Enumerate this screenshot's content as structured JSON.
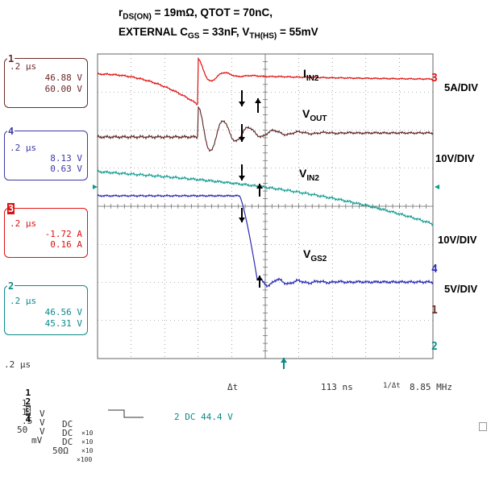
{
  "title": {
    "line1_pre": "r",
    "line1_sub": "DS(ON)",
    "line1_post": " = 19mΩ, QTOT = 70nC,",
    "line2_pre": "EXTERNAL C",
    "line2_sub1": "GS",
    "line2_mid": " = 33nF, V",
    "line2_sub2": "TH(HS)",
    "line2_post": " = 55mV"
  },
  "channel_boxes": [
    {
      "num": "1",
      "time": ".2 μs",
      "v1": "46.88 V",
      "v2": "60.00 V",
      "color": "#6b2a2a"
    },
    {
      "num": "4",
      "time": ".2 μs",
      "v1": "8.13 V",
      "v2": "0.63 V",
      "color": "#3a3aa8"
    },
    {
      "num": "3",
      "time": ".2 μs",
      "v1": "-1.72 A",
      "v2": "0.16 A",
      "color": "#dd1111"
    },
    {
      "num": "2",
      "time": ".2 μs",
      "v1": "46.56 V",
      "v2": "45.31 V",
      "color": "#0a8a8a"
    }
  ],
  "scale_labels": {
    "iin2": "5A/DIV",
    "vout": "10V/DIV",
    "vin2": "10V/DIV",
    "vgs2": "5V/DIV"
  },
  "right_markers": {
    "m3": "3",
    "m4": "4",
    "m1": "1",
    "m2": "2"
  },
  "bottom": {
    "timebase": ".2 μs",
    "delta_label": "Δt",
    "delta_value": "113 ns",
    "inv_label": "1/Δt",
    "inv_value": "8.85 MHz",
    "trigger": "2 DC 44.4 V",
    "channels": [
      {
        "num": "1",
        "scale": "1",
        "unit": "V",
        "coupling": "DC",
        "bw": "×10"
      },
      {
        "num": "2",
        "scale": "1",
        "unit": "V",
        "coupling": "DC",
        "bw": "×10"
      },
      {
        "num": "3",
        "scale": ".5",
        "unit": "V",
        "coupling": "DC",
        "bw": "×10"
      },
      {
        "num": "4",
        "scale": "50",
        "unit": "mV",
        "coupling": "50Ω",
        "bw": "×100"
      }
    ]
  },
  "chart_data": {
    "type": "line",
    "title": "rDS(ON) = 19mΩ, QTOT = 70nC, EXTERNAL CGS = 33nF, VTH(HS) = 55mV",
    "x_divisions": 10,
    "y_divisions": 8,
    "time_per_div": ".2 μs",
    "series": [
      {
        "name": "IIN2",
        "color": "#e01010",
        "scale": "5A/DIV"
      },
      {
        "name": "VOUT",
        "color": "#5a1f1f",
        "scale": "10V/DIV"
      },
      {
        "name": "VIN2",
        "color": "#0e9a8e",
        "scale": "10V/DIV"
      },
      {
        "name": "VGS2",
        "color": "#2a2ab4",
        "scale": "5V/DIV"
      }
    ],
    "grid": true,
    "colors": {
      "grid": "#666666",
      "iin2": "#e01010",
      "vout": "#5a1f1f",
      "vin2": "#0e9a8e",
      "vgs2": "#2a2ab4"
    }
  }
}
